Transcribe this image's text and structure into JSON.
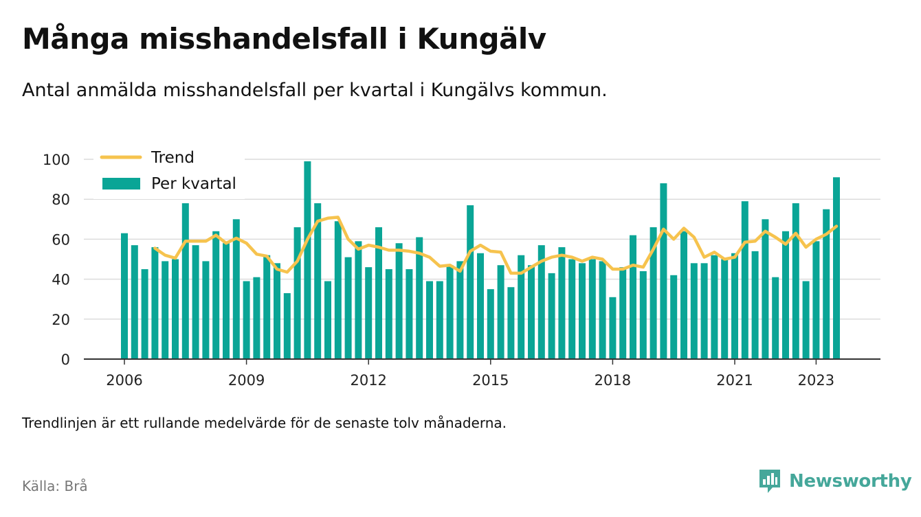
{
  "title": "Många misshandelsfall i Kungälv",
  "subtitle": "Antal anmälda misshandelsfall per kvartal i Kungälvs kommun.",
  "footnote": "Trendlinjen är ett rullande medelvärde för de senaste tolv månaderna.",
  "source": "Källa: Brå",
  "brand": "Newsworthy",
  "colors": {
    "bars": "#0aa596",
    "trend": "#f6c34e",
    "brand": "#45a79a"
  },
  "chart_data": {
    "type": "bar",
    "series": [
      {
        "name": "Per kvartal",
        "type": "bar",
        "x": [
          "2006-Q1",
          "2006-Q2",
          "2006-Q3",
          "2006-Q4",
          "2007-Q1",
          "2007-Q2",
          "2007-Q3",
          "2007-Q4",
          "2008-Q1",
          "2008-Q2",
          "2008-Q3",
          "2008-Q4",
          "2009-Q1",
          "2009-Q2",
          "2009-Q3",
          "2009-Q4",
          "2010-Q1",
          "2010-Q2",
          "2010-Q3",
          "2010-Q4",
          "2011-Q1",
          "2011-Q2",
          "2011-Q3",
          "2011-Q4",
          "2012-Q1",
          "2012-Q2",
          "2012-Q3",
          "2012-Q4",
          "2013-Q1",
          "2013-Q2",
          "2013-Q3",
          "2013-Q4",
          "2014-Q1",
          "2014-Q2",
          "2014-Q3",
          "2014-Q4",
          "2015-Q1",
          "2015-Q2",
          "2015-Q3",
          "2015-Q4",
          "2016-Q1",
          "2016-Q2",
          "2016-Q3",
          "2016-Q4",
          "2017-Q1",
          "2017-Q2",
          "2017-Q3",
          "2017-Q4",
          "2018-Q1",
          "2018-Q2",
          "2018-Q3",
          "2018-Q4",
          "2019-Q1",
          "2019-Q2",
          "2019-Q3",
          "2019-Q4",
          "2020-Q1",
          "2020-Q2",
          "2020-Q3",
          "2020-Q4",
          "2021-Q1",
          "2021-Q2",
          "2021-Q3",
          "2021-Q4",
          "2022-Q1",
          "2022-Q2",
          "2022-Q3",
          "2022-Q4",
          "2023-Q1",
          "2023-Q2",
          "2023-Q3"
        ],
        "values": [
          63,
          57,
          45,
          56,
          49,
          50,
          78,
          57,
          49,
          64,
          58,
          70,
          39,
          41,
          52,
          48,
          33,
          66,
          99,
          78,
          39,
          69,
          51,
          59,
          46,
          66,
          45,
          58,
          45,
          61,
          39,
          39,
          47,
          49,
          77,
          53,
          35,
          47,
          36,
          52,
          47,
          57,
          43,
          56,
          50,
          48,
          50,
          49,
          31,
          46,
          62,
          44,
          66,
          88,
          42,
          64,
          48,
          48,
          52,
          50,
          53,
          79,
          54,
          70,
          41,
          64,
          78,
          39,
          59,
          75,
          91
        ]
      },
      {
        "name": "Trend",
        "type": "line",
        "x_start": "2006-Q4",
        "values": [
          55.5,
          52,
          50.5,
          59,
          59,
          59,
          62,
          58,
          60.5,
          58,
          52.5,
          51.5,
          45,
          43.5,
          49,
          60,
          69,
          70.5,
          71,
          60,
          55,
          57,
          56,
          54.5,
          54.5,
          54,
          53,
          51,
          46.5,
          47,
          44,
          54,
          57,
          54,
          53.5,
          43,
          43,
          46,
          49,
          51,
          52,
          51,
          49,
          51,
          50,
          45,
          45,
          47,
          46,
          55,
          65,
          60,
          65.5,
          61,
          51,
          53.5,
          50,
          51,
          58.5,
          59,
          64,
          61,
          57.5,
          63,
          56,
          60,
          62.5,
          66.5
        ]
      }
    ],
    "x_ticks": [
      "2006",
      "2009",
      "2012",
      "2015",
      "2018",
      "2021",
      "2023"
    ],
    "y_ticks": [
      0,
      20,
      40,
      60,
      80,
      100
    ],
    "ylim": [
      0,
      100
    ],
    "grid": true,
    "legend": {
      "position": "top-left",
      "items": [
        "Trend",
        "Per kvartal"
      ]
    }
  }
}
